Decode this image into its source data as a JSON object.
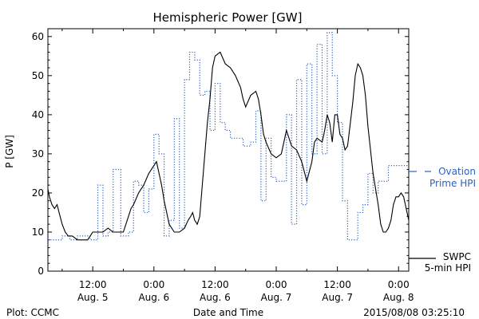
{
  "chart_data": {
    "type": "line",
    "title": "Hemispheric Power [GW]",
    "ylabel": "P [GW]",
    "xlabel": "Date and Time",
    "ylim": [
      0,
      62
    ],
    "yticks": [
      0,
      10,
      20,
      30,
      40,
      50,
      60
    ],
    "xlim_hours": [
      0,
      72
    ],
    "x_unit": "hours after 2015-08-05 00:00 UT",
    "x_ticks": [
      {
        "h": 12,
        "time": "12:00",
        "date": "Aug. 5"
      },
      {
        "h": 24,
        "time": "0:00",
        "date": "Aug. 6"
      },
      {
        "h": 36,
        "time": "12:00",
        "date": "Aug. 6"
      },
      {
        "h": 48,
        "time": "0:00",
        "date": "Aug. 7"
      },
      {
        "h": 60,
        "time": "12:00",
        "date": "Aug. 7"
      },
      {
        "h": 72,
        "time": "0:00",
        "date": "Aug. 8"
      }
    ],
    "series": [
      {
        "name": "SWPC 5-min HPI",
        "color": "#000000",
        "style": "solid",
        "x": [
          3.2,
          3.5,
          4.0,
          4.5,
          5.0,
          5.4,
          6.0,
          6.6,
          7.2,
          8.0,
          9.0,
          10.0,
          11.0,
          11.5,
          12.0,
          13.0,
          14.0,
          15.0,
          16.0,
          17.0,
          18.0,
          19.0,
          19.5,
          20.0,
          21.0,
          22.0,
          23.0,
          24.0,
          24.5,
          25.0,
          25.5,
          26.0,
          26.5,
          27.0,
          28.0,
          29.0,
          30.0,
          30.7,
          31.2,
          31.6,
          32.0,
          32.5,
          33.0,
          33.5,
          34.0,
          34.5,
          35.0,
          35.5,
          36.0,
          37.0,
          38.0,
          39.0,
          40.0,
          41.0,
          41.5,
          42.0,
          43.0,
          44.0,
          44.5,
          45.0,
          45.5,
          46.0,
          47.0,
          48.0,
          49.0,
          50.0,
          51.0,
          52.0,
          53.0,
          54.0,
          55.0,
          55.5,
          56.0,
          57.0,
          57.5,
          58.0,
          58.5,
          59.0,
          59.5,
          60.0,
          60.5,
          61.0,
          61.5,
          62.0,
          63.0,
          63.5,
          64.0,
          64.5,
          65.0,
          65.5,
          66.0,
          67.0,
          68.0,
          68.5,
          69.0,
          69.5,
          70.0,
          70.5,
          71.0,
          71.5,
          72.0,
          72.5,
          73.0,
          73.5,
          74.0
        ],
        "y": [
          21,
          19,
          17,
          16,
          17,
          15,
          12,
          10,
          9,
          9,
          8,
          8,
          8,
          9,
          10,
          10,
          10,
          11,
          10,
          10,
          10,
          14,
          16,
          17,
          20,
          22,
          25,
          27,
          28,
          25,
          22,
          18,
          15,
          12,
          10,
          10,
          11,
          13,
          14,
          15,
          13,
          12,
          14,
          22,
          30,
          38,
          44,
          52,
          55,
          56,
          53,
          52,
          50,
          47,
          44,
          42,
          45,
          46,
          44,
          40,
          35,
          33,
          30,
          29,
          30,
          36,
          32,
          31,
          28,
          23,
          28,
          33,
          34,
          33,
          36,
          40,
          38,
          33,
          40,
          40,
          35,
          34,
          31,
          32,
          43,
          50,
          53,
          52,
          50,
          45,
          37,
          25,
          17,
          12,
          10,
          10,
          11,
          13,
          17,
          19,
          19,
          20,
          19,
          16,
          13
        ]
      },
      {
        "name": "Ovation Prime HPI",
        "color": "#2a62c4",
        "style": "dotted-step",
        "x": [
          3.2,
          5.2,
          6.0,
          7.5,
          9.0,
          11.5,
          12.0,
          13.0,
          14.0,
          15.0,
          16.0,
          17.5,
          19.0,
          20.0,
          21.0,
          22.0,
          23.0,
          24.0,
          25.0,
          26.0,
          27.0,
          28.0,
          29.0,
          30.0,
          31.0,
          32.0,
          33.0,
          34.0,
          35.0,
          36.0,
          37.0,
          38.0,
          39.0,
          40.0,
          41.5,
          43.0,
          44.0,
          45.0,
          46.0,
          47.0,
          48.0,
          49.0,
          50.0,
          51.0,
          52.0,
          53.0,
          54.0,
          55.0,
          56.0,
          57.0,
          58.0,
          59.0,
          60.0,
          61.0,
          62.0,
          63.0,
          64.0,
          65.0,
          66.0,
          67.0,
          68.0,
          69.0,
          70.0,
          71.0,
          72.0,
          73.0,
          74.0
        ],
        "y": [
          8,
          8,
          9,
          8,
          9,
          8,
          8,
          22,
          9,
          10,
          26,
          9,
          10,
          23,
          22,
          15,
          21,
          35,
          30,
          9,
          13,
          39,
          11,
          49,
          56,
          54,
          45,
          46,
          36,
          48,
          38,
          36,
          34,
          34,
          32,
          33,
          41,
          18,
          34,
          24,
          23,
          23,
          40,
          12,
          49,
          17,
          53,
          30,
          58,
          30,
          61,
          50,
          38,
          18,
          8,
          8,
          15,
          17,
          25,
          20,
          23,
          23,
          27,
          27,
          27,
          27,
          27
        ]
      }
    ],
    "legend": [
      {
        "series": "Ovation Prime HPI",
        "line1": "Ovation",
        "line2": "Prime HPI",
        "color": "#2a62c4",
        "position": "right"
      },
      {
        "series": "SWPC 5-min HPI",
        "line1": "SWPC",
        "line2": "5-min HPI",
        "color": "#000000",
        "position": "bottom-right"
      }
    ]
  },
  "footer": {
    "left": "Plot: CCMC",
    "center": "Date and Time",
    "right": "2015/08/08 03:25:10"
  }
}
